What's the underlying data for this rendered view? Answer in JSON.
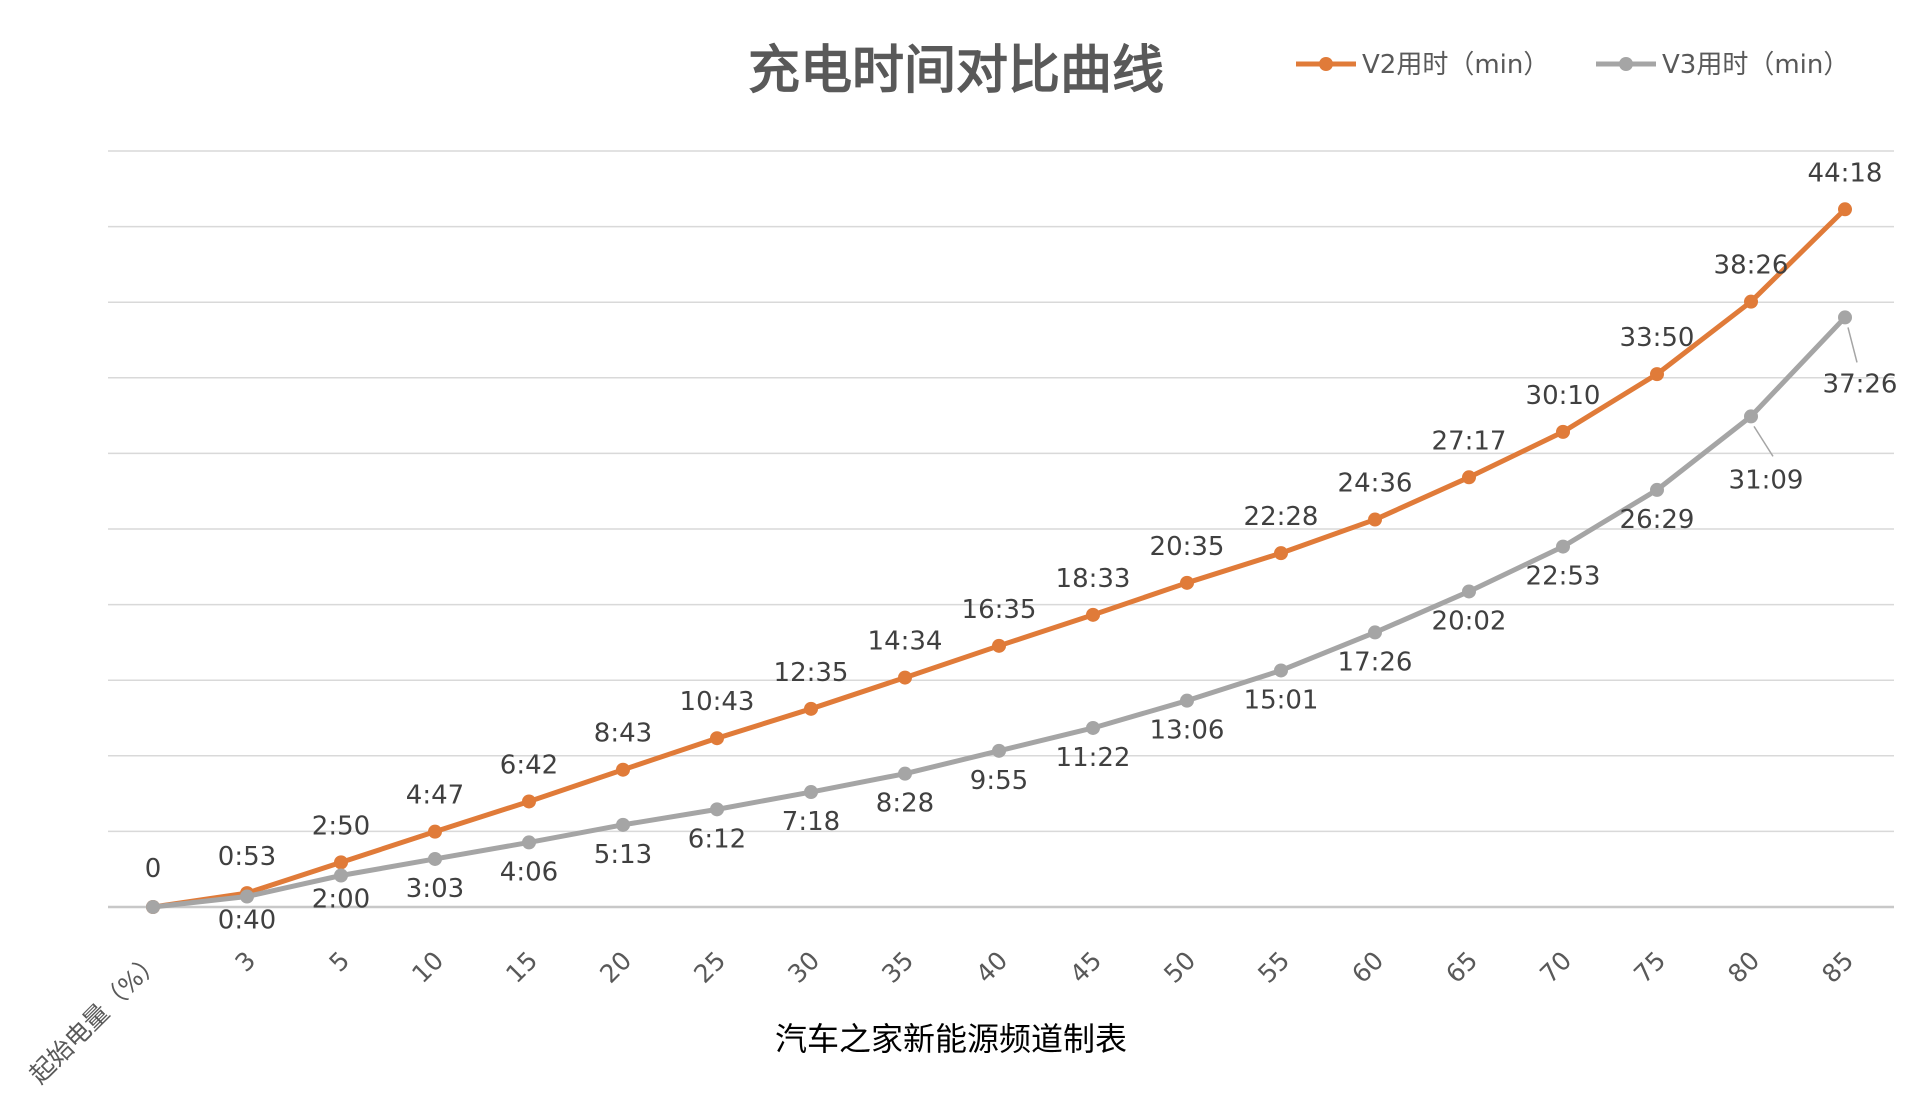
{
  "chart_data": {
    "type": "line",
    "title": "充电时间对比曲线",
    "xlabel": "",
    "ylabel": "",
    "ylim_minutes": [
      0,
      48
    ],
    "y_major_step_minutes": 4.8,
    "grid": true,
    "legend_position": "top-right",
    "categories": [
      "起始电量（%）",
      "3",
      "5",
      "10",
      "15",
      "20",
      "25",
      "30",
      "35",
      "40",
      "45",
      "50",
      "55",
      "60",
      "65",
      "70",
      "75",
      "80",
      "85"
    ],
    "series": [
      {
        "name": "V2用时（min）",
        "color": "#E07B39",
        "labels": [
          "0",
          "0:53",
          "2:50",
          "4:47",
          "6:42",
          "8:43",
          "10:43",
          "12:35",
          "14:34",
          "16:35",
          "18:33",
          "20:35",
          "22:28",
          "24:36",
          "27:17",
          "30:10",
          "33:50",
          "38:26",
          "44:18"
        ]
      },
      {
        "name": "V3用时（min）",
        "color": "#A5A5A5",
        "labels": [
          "",
          "0:40",
          "2:00",
          "3:03",
          "4:06",
          "5:13",
          "6:12",
          "7:18",
          "8:28",
          "9:55",
          "11:22",
          "13:06",
          "15:01",
          "17:26",
          "20:02",
          "22:53",
          "26:29",
          "31:09",
          "37:26"
        ]
      }
    ],
    "footer": "汽车之家新能源频道制表"
  }
}
